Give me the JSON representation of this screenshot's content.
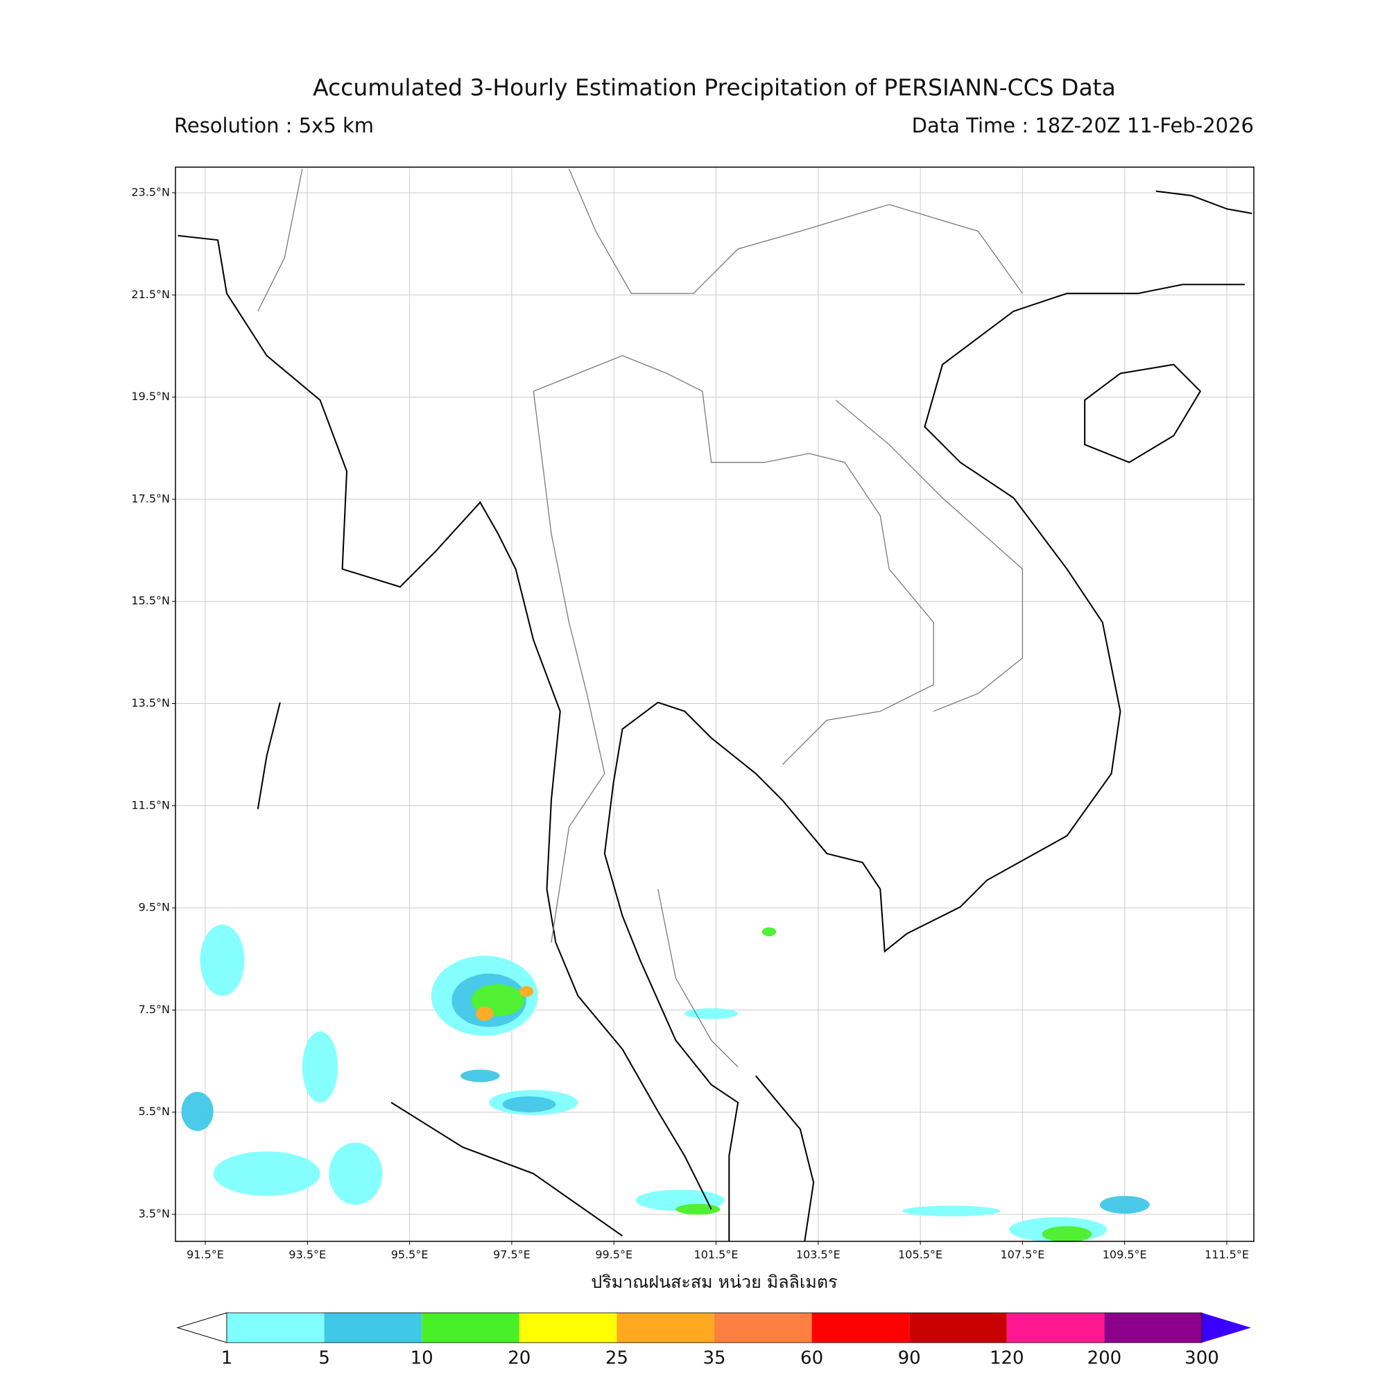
{
  "header": {
    "title": "Accumulated 3-Hourly Estimation Precipitation of PERSIANN-CCS Data",
    "resolution": "Resolution : 5x5 km",
    "data_time": "Data Time : 18Z-20Z 11-Feb-2026"
  },
  "map": {
    "lat_ticks": [
      "23.5°N",
      "21.5°N",
      "19.5°N",
      "17.5°N",
      "15.5°N",
      "13.5°N",
      "11.5°N",
      "9.5°N",
      "7.5°N",
      "5.5°N",
      "3.5°N"
    ],
    "lon_ticks": [
      "91.5°E",
      "93.5°E",
      "95.5°E",
      "97.5°E",
      "99.5°E",
      "101.5°E",
      "103.5°E",
      "105.5°E",
      "107.5°E",
      "109.5°E",
      "111.5°E"
    ],
    "xlabel": "ปริมาณฝนสะสม หน่วย มิลลิเมตร"
  },
  "colorbar": {
    "levels": [
      "1",
      "5",
      "10",
      "20",
      "25",
      "35",
      "60",
      "90",
      "120",
      "200",
      "300"
    ],
    "colors": [
      "#80ffff",
      "#40c8e8",
      "#48f028",
      "#ffff00",
      "#ffa820",
      "#ff8040",
      "#ff0000",
      "#c80000",
      "#ff1890",
      "#8c008c"
    ],
    "under_color": "#ffffff",
    "over_color": "#3a00ff"
  }
}
